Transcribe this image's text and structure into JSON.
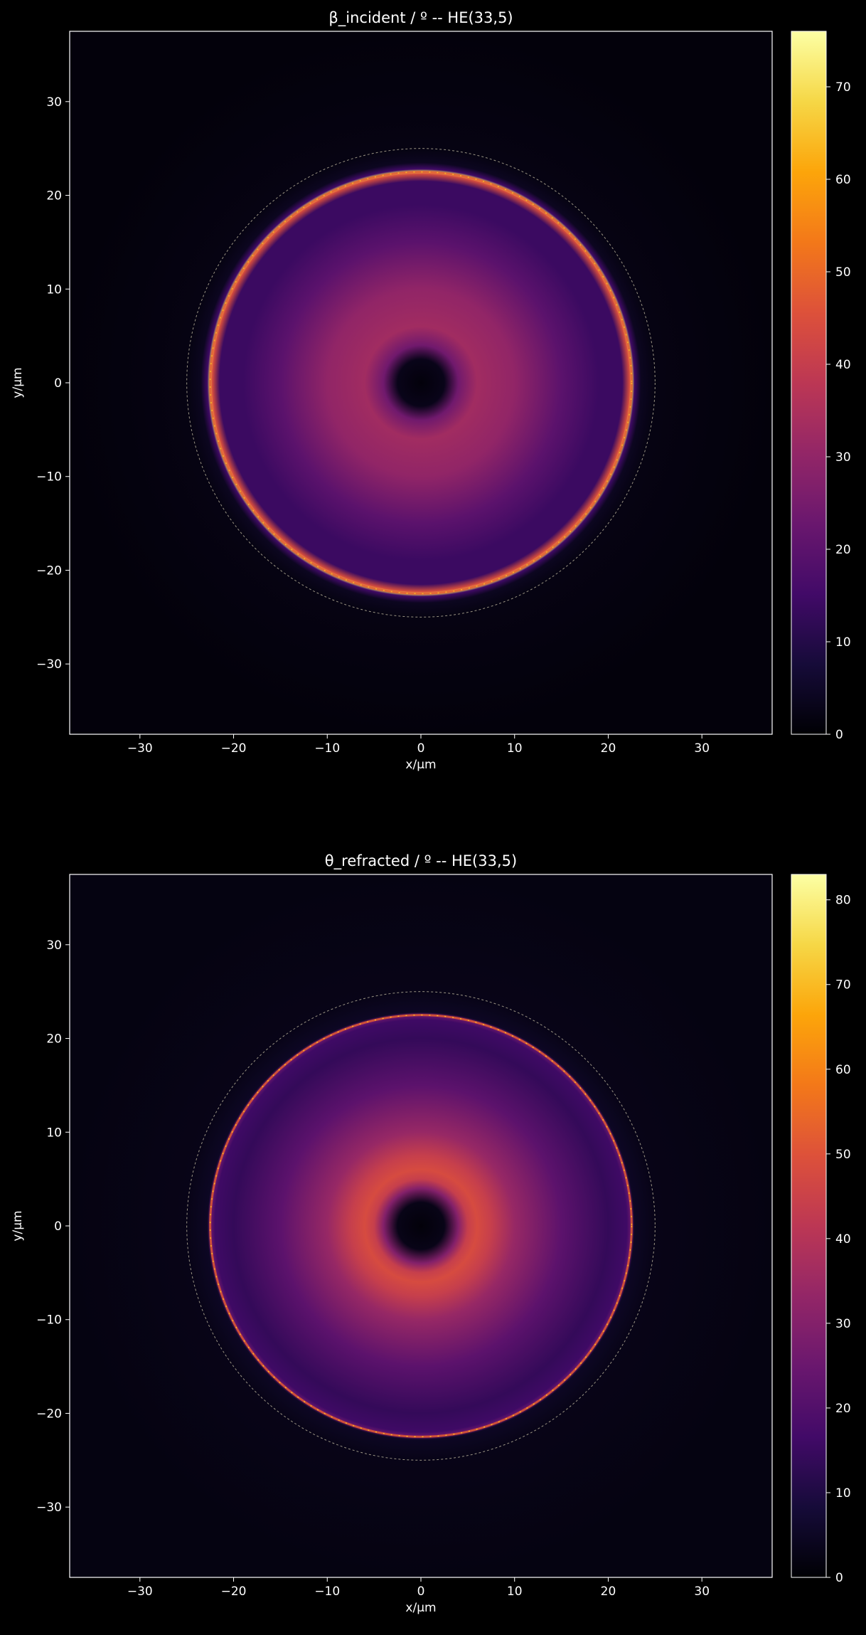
{
  "chart_data": [
    {
      "type": "heatmap",
      "title": "β_incident / º -- HE(33,5)",
      "xlabel": "x/µm",
      "ylabel": "y/µm",
      "xlim": [
        -37.5,
        37.5
      ],
      "ylim": [
        -37.5,
        37.5
      ],
      "x_ticks": [
        -30,
        -20,
        -10,
        0,
        10,
        20,
        30
      ],
      "y_ticks": [
        -30,
        -20,
        -10,
        0,
        10,
        20,
        30
      ],
      "x_tick_labels": [
        "−30",
        "−20",
        "−10",
        "0",
        "10",
        "20",
        "30"
      ],
      "y_tick_labels": [
        "−30",
        "−20",
        "−10",
        "0",
        "10",
        "20",
        "30"
      ],
      "colormap": "inferno",
      "colorbar_range": [
        0,
        76
      ],
      "colorbar_ticks": [
        0,
        10,
        20,
        30,
        40,
        50,
        60,
        70
      ],
      "colorbar_tick_labels": [
        "0",
        "10",
        "20",
        "30",
        "40",
        "50",
        "60",
        "70"
      ],
      "grid": false,
      "radial_profile": [
        [
          0,
          1
        ],
        [
          2.5,
          3
        ],
        [
          4,
          24
        ],
        [
          6,
          33
        ],
        [
          10,
          30
        ],
        [
          15,
          20
        ],
        [
          19,
          14
        ],
        [
          21.5,
          14
        ],
        [
          22.3,
          45
        ],
        [
          22.5,
          70
        ],
        [
          22.8,
          15
        ],
        [
          23.5,
          4
        ],
        [
          25,
          2
        ],
        [
          37.5,
          1
        ]
      ],
      "dashed_circle_radius": 25,
      "core_radius": 22.5
    },
    {
      "type": "heatmap",
      "title": "θ_refracted / º -- HE(33,5)",
      "xlabel": "x/µm",
      "ylabel": "y/µm",
      "xlim": [
        -37.5,
        37.5
      ],
      "ylim": [
        -37.5,
        37.5
      ],
      "x_ticks": [
        -30,
        -20,
        -10,
        0,
        10,
        20,
        30
      ],
      "y_ticks": [
        -30,
        -20,
        -10,
        0,
        10,
        20,
        30
      ],
      "x_tick_labels": [
        "−30",
        "−20",
        "−10",
        "0",
        "10",
        "20",
        "30"
      ],
      "y_tick_labels": [
        "−30",
        "−20",
        "−10",
        "0",
        "10",
        "20",
        "30"
      ],
      "colormap": "inferno",
      "colorbar_range": [
        0,
        83
      ],
      "colorbar_ticks": [
        0,
        10,
        20,
        30,
        40,
        50,
        60,
        70,
        80
      ],
      "colorbar_tick_labels": [
        "0",
        "10",
        "20",
        "30",
        "40",
        "50",
        "60",
        "70",
        "80"
      ],
      "grid": false,
      "radial_profile": [
        [
          0,
          1
        ],
        [
          2.5,
          3
        ],
        [
          4,
          30
        ],
        [
          5,
          44
        ],
        [
          6,
          48
        ],
        [
          7.5,
          44
        ],
        [
          10,
          34
        ],
        [
          15,
          22
        ],
        [
          20,
          14
        ],
        [
          22,
          16
        ],
        [
          22.5,
          26
        ],
        [
          22.8,
          5
        ],
        [
          25,
          3
        ],
        [
          37.5,
          2
        ]
      ],
      "dashed_circle_radius": 25,
      "core_radius": 22.5
    }
  ]
}
